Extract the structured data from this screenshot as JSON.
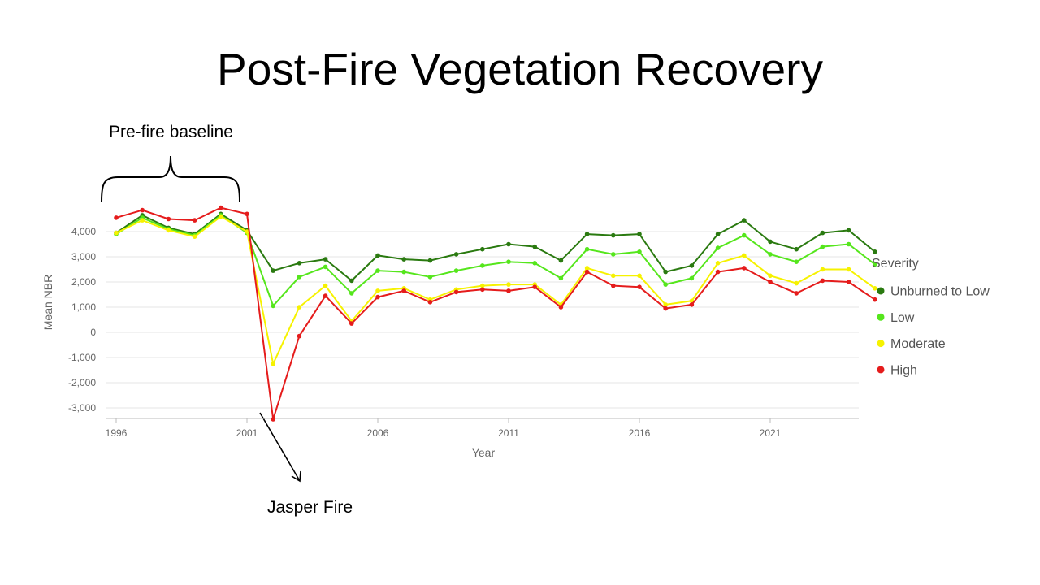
{
  "slide": {
    "title": "Post-Fire Vegetation Recovery"
  },
  "annotations": {
    "baseline": "Pre-fire baseline",
    "fire": "Jasper Fire"
  },
  "chart_data": {
    "type": "line",
    "xlabel": "Year",
    "ylabel": "Mean NBR",
    "x_tick_labels": [
      "1996",
      "2001",
      "2006",
      "2011",
      "2016",
      "2021"
    ],
    "x_ticks": [
      1996,
      2001,
      2006,
      2011,
      2016,
      2021
    ],
    "y_ticks": [
      -3000,
      -2000,
      -1000,
      0,
      1000,
      2000,
      3000,
      4000
    ],
    "y_tick_labels": [
      "-3,000",
      "-2,000",
      "-1,000",
      "0",
      "1,000",
      "2,000",
      "3,000",
      "4,000"
    ],
    "xlim": [
      1995.9,
      2024.8
    ],
    "ylim": [
      -3400,
      4800
    ],
    "grid": "horizontal",
    "legend": {
      "title": "Severity",
      "position": "right"
    },
    "x": [
      1996,
      1997,
      1998,
      1999,
      2000,
      2001,
      2002,
      2003,
      2004,
      2005,
      2006,
      2007,
      2008,
      2009,
      2010,
      2011,
      2012,
      2013,
      2014,
      2015,
      2016,
      2017,
      2018,
      2019,
      2020,
      2021,
      2022,
      2023,
      2024,
      2025
    ],
    "series": [
      {
        "name": "Unburned to Low",
        "color": "#2a7a10",
        "values": [
          3950,
          4650,
          4150,
          3900,
          4700,
          4050,
          2450,
          2750,
          2900,
          2050,
          3050,
          2900,
          2850,
          3100,
          3300,
          3500,
          3400,
          2850,
          3900,
          3850,
          3900,
          2400,
          2650,
          3900,
          4450,
          3600,
          3300,
          3950,
          4050,
          3200
        ]
      },
      {
        "name": "Low",
        "color": "#55e61c",
        "values": [
          3900,
          4550,
          4100,
          3850,
          4650,
          3950,
          1050,
          2200,
          2600,
          1550,
          2450,
          2400,
          2200,
          2450,
          2650,
          2800,
          2750,
          2150,
          3300,
          3100,
          3200,
          1900,
          2150,
          3350,
          3850,
          3100,
          2800,
          3400,
          3500,
          2700
        ]
      },
      {
        "name": "Moderate",
        "color": "#f6f200",
        "values": [
          3950,
          4450,
          4050,
          3800,
          4600,
          4000,
          -1250,
          1000,
          1850,
          450,
          1650,
          1750,
          1300,
          1700,
          1850,
          1900,
          1900,
          1100,
          2550,
          2250,
          2250,
          1100,
          1250,
          2750,
          3050,
          2250,
          1950,
          2500,
          2500,
          1750
        ]
      },
      {
        "name": "High",
        "color": "#e51c1c",
        "values": [
          4550,
          4850,
          4500,
          4450,
          4950,
          4700,
          -3450,
          -150,
          1450,
          350,
          1400,
          1650,
          1200,
          1600,
          1700,
          1650,
          1800,
          1000,
          2400,
          1850,
          1800,
          950,
          1100,
          2400,
          2550,
          2000,
          1550,
          2050,
          2000,
          1300
        ]
      }
    ]
  }
}
